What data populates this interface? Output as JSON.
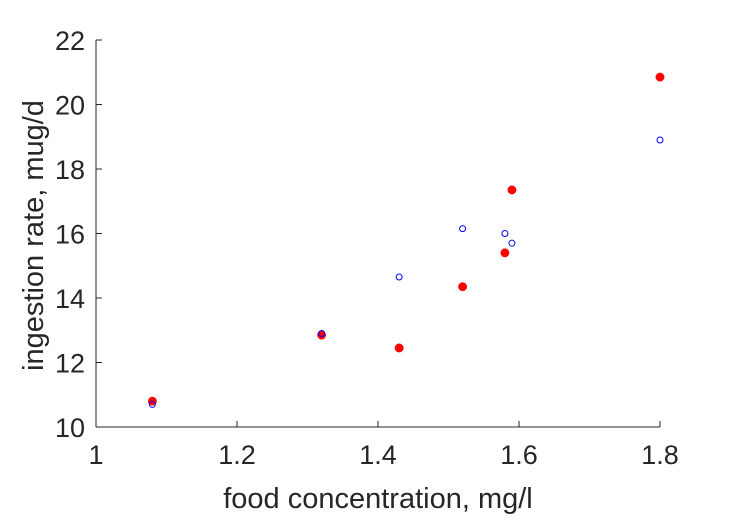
{
  "chart_data": {
    "type": "scatter",
    "title": "",
    "xlabel": "food concentration, mg/l",
    "ylabel": "ingestion rate, mug/d",
    "xlim": [
      1,
      1.8
    ],
    "ylim": [
      10,
      22
    ],
    "xticks": [
      "1",
      "1.2",
      "1.4",
      "1.6",
      "1.8"
    ],
    "yticks": [
      "10",
      "12",
      "14",
      "16",
      "18",
      "20",
      "22"
    ],
    "grid": false,
    "legend": "none",
    "series": [
      {
        "style": "filled",
        "color": "#ff0000",
        "x": [
          1.08,
          1.32,
          1.43,
          1.52,
          1.58,
          1.59,
          1.8
        ],
        "y": [
          10.8,
          12.85,
          12.45,
          14.35,
          15.4,
          17.35,
          20.85
        ]
      },
      {
        "style": "open",
        "color": "#0000ff",
        "x": [
          1.08,
          1.32,
          1.43,
          1.52,
          1.58,
          1.59,
          1.8
        ],
        "y": [
          10.7,
          12.9,
          14.65,
          16.15,
          16.0,
          15.7,
          18.9
        ]
      }
    ]
  }
}
